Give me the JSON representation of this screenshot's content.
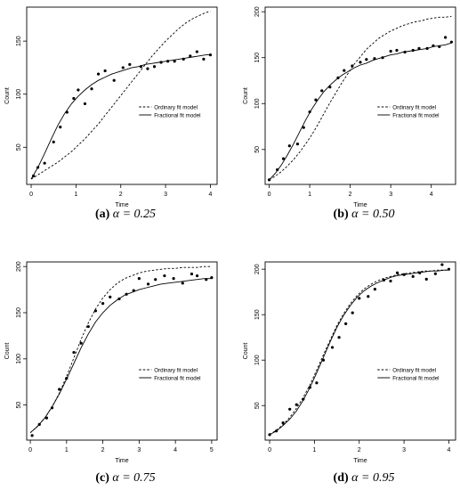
{
  "chart_data": [
    {
      "type": "line",
      "caption_label": "(a)",
      "caption_text": "α = 0.25",
      "xlabel": "Time",
      "ylabel": "Count",
      "xlim": [
        -0.1,
        4.15
      ],
      "ylim": [
        15,
        182
      ],
      "xticks": [
        0,
        1,
        2,
        3,
        4
      ],
      "yticks": [
        50,
        100,
        150
      ],
      "legend": {
        "position": "right",
        "entries": [
          "Ordinary fit model",
          "Fractional fit model"
        ]
      },
      "x": [
        0.0,
        0.15,
        0.3,
        0.45,
        0.6,
        0.75,
        0.9,
        1.05,
        1.2,
        1.35,
        1.5,
        1.65,
        1.8,
        1.95,
        2.1,
        2.25,
        2.4,
        2.55,
        2.7,
        2.85,
        3.0,
        3.15,
        3.3,
        3.45,
        3.6,
        3.75,
        3.9,
        4.0
      ],
      "series": [
        {
          "name": "Ordinary fit model",
          "style": "dashed",
          "values": [
            20,
            24,
            28,
            32,
            36,
            41,
            46,
            52,
            58,
            65,
            72,
            80,
            88,
            96,
            104,
            112,
            120,
            128,
            136,
            143,
            150,
            156,
            162,
            167,
            171,
            174,
            177,
            178
          ]
        },
        {
          "name": "Fractional fit model",
          "style": "solid",
          "values": [
            20,
            31,
            44,
            58,
            71,
            82,
            91,
            98,
            104,
            109,
            113,
            116,
            119,
            121,
            123,
            125,
            126,
            128,
            129,
            130,
            131,
            132,
            133,
            134,
            135,
            136,
            137,
            137
          ]
        }
      ],
      "points": {
        "x": [
          0.05,
          0.15,
          0.3,
          0.5,
          0.65,
          0.8,
          0.95,
          1.05,
          1.2,
          1.35,
          1.5,
          1.65,
          1.85,
          2.05,
          2.2,
          2.45,
          2.6,
          2.75,
          2.9,
          3.05,
          3.2,
          3.4,
          3.55,
          3.7,
          3.85,
          4.0
        ],
        "y": [
          23,
          31,
          35,
          55,
          69,
          83,
          96,
          104,
          91,
          105,
          119,
          122,
          113,
          125,
          128,
          126,
          124,
          126,
          130,
          131,
          131,
          133,
          136,
          140,
          133,
          137
        ]
      }
    },
    {
      "type": "line",
      "caption_label": "(b)",
      "caption_text": "α = 0.50",
      "xlabel": "Time",
      "ylabel": "Count",
      "xlim": [
        -0.1,
        4.6
      ],
      "ylim": [
        12,
        205
      ],
      "xticks": [
        0,
        1,
        2,
        3,
        4
      ],
      "yticks": [
        50,
        100,
        150,
        200
      ],
      "legend": {
        "position": "right",
        "entries": [
          "Ordinary fit model",
          "Fractional fit model"
        ]
      },
      "x": [
        0.0,
        0.15,
        0.3,
        0.45,
        0.6,
        0.75,
        0.9,
        1.05,
        1.2,
        1.35,
        1.5,
        1.65,
        1.8,
        1.95,
        2.1,
        2.25,
        2.4,
        2.55,
        2.7,
        2.85,
        3.0,
        3.15,
        3.3,
        3.45,
        3.6,
        3.75,
        3.9,
        4.05,
        4.2,
        4.35,
        4.5
      ],
      "series": [
        {
          "name": "Ordinary fit model",
          "style": "dashed",
          "values": [
            17,
            21,
            26,
            32,
            39,
            47,
            56,
            66,
            77,
            89,
            101,
            112,
            123,
            133,
            143,
            151,
            159,
            165,
            171,
            175,
            179,
            182,
            185,
            187,
            189,
            190,
            192,
            193,
            194,
            194,
            195
          ]
        },
        {
          "name": "Fractional fit model",
          "style": "solid",
          "values": [
            17,
            24,
            33,
            44,
            56,
            69,
            82,
            94,
            104,
            113,
            120,
            126,
            131,
            135,
            139,
            142,
            144,
            147,
            149,
            151,
            153,
            154,
            156,
            157,
            158,
            159,
            160,
            162,
            163,
            164,
            166
          ]
        }
      ],
      "points": {
        "x": [
          0.0,
          0.2,
          0.35,
          0.5,
          0.7,
          0.85,
          1.0,
          1.15,
          1.3,
          1.5,
          1.7,
          1.85,
          2.05,
          2.25,
          2.4,
          2.6,
          2.8,
          3.0,
          3.15,
          3.35,
          3.55,
          3.7,
          3.9,
          4.05,
          4.2,
          4.35,
          4.5
        ],
        "y": [
          17,
          28,
          40,
          54,
          56,
          74,
          91,
          104,
          114,
          118,
          128,
          136,
          141,
          145,
          148,
          149,
          150,
          157,
          158,
          156,
          158,
          160,
          160,
          163,
          162,
          172,
          167
        ]
      }
    },
    {
      "type": "line",
      "caption_label": "(c)",
      "caption_text": "α = 0.75",
      "xlabel": "Time",
      "ylabel": "Count",
      "xlim": [
        -0.1,
        5.15
      ],
      "ylim": [
        12,
        205
      ],
      "xticks": [
        0,
        1,
        2,
        3,
        4,
        5
      ],
      "yticks": [
        50,
        100,
        150,
        200
      ],
      "legend": {
        "position": "right",
        "entries": [
          "Ordinary fit model",
          "Fractional fit model"
        ]
      },
      "x": [
        0.0,
        0.2,
        0.4,
        0.6,
        0.8,
        1.0,
        1.2,
        1.4,
        1.6,
        1.8,
        2.0,
        2.2,
        2.4,
        2.6,
        2.8,
        3.0,
        3.2,
        3.4,
        3.6,
        3.8,
        4.0,
        4.2,
        4.4,
        4.6,
        4.8,
        5.0
      ],
      "series": [
        {
          "name": "Ordinary fit model",
          "style": "dashed",
          "values": [
            20,
            27,
            36,
            48,
            63,
            81,
            101,
            121,
            139,
            154,
            166,
            175,
            182,
            187,
            190,
            193,
            195,
            196,
            197,
            198,
            198,
            199,
            199,
            199,
            200,
            200
          ]
        },
        {
          "name": "Fractional fit model",
          "style": "solid",
          "values": [
            20,
            27,
            36,
            48,
            62,
            78,
            95,
            112,
            127,
            140,
            150,
            158,
            164,
            169,
            172,
            175,
            177,
            179,
            181,
            182,
            183,
            184,
            185,
            186,
            187,
            187
          ]
        }
      ],
      "points": {
        "x": [
          0.05,
          0.25,
          0.45,
          0.6,
          0.8,
          1.0,
          1.2,
          1.4,
          1.6,
          1.8,
          2.0,
          2.2,
          2.45,
          2.65,
          2.85,
          3.0,
          3.25,
          3.45,
          3.7,
          3.95,
          4.2,
          4.45,
          4.6,
          4.85,
          5.0
        ],
        "y": [
          17,
          29,
          36,
          47,
          67,
          79,
          107,
          117,
          135,
          152,
          160,
          167,
          165,
          170,
          174,
          187,
          181,
          186,
          190,
          187,
          182,
          192,
          190,
          186,
          188
        ]
      }
    },
    {
      "type": "line",
      "caption_label": "(d)",
      "caption_text": "α = 0.95",
      "xlabel": "Time",
      "ylabel": "Count",
      "xlim": [
        -0.1,
        4.15
      ],
      "ylim": [
        12,
        208
      ],
      "xticks": [
        0,
        1,
        2,
        3,
        4
      ],
      "yticks": [
        50,
        100,
        150,
        200
      ],
      "legend": {
        "position": "right",
        "entries": [
          "Ordinary fit model",
          "Fractional fit model"
        ]
      },
      "x": [
        0.0,
        0.15,
        0.3,
        0.45,
        0.6,
        0.75,
        0.9,
        1.05,
        1.2,
        1.35,
        1.5,
        1.65,
        1.8,
        1.95,
        2.1,
        2.25,
        2.4,
        2.55,
        2.7,
        2.85,
        3.0,
        3.15,
        3.3,
        3.45,
        3.6,
        3.75,
        3.9,
        4.0
      ],
      "series": [
        {
          "name": "Ordinary fit model",
          "style": "dashed",
          "values": [
            18,
            23,
            29,
            37,
            47,
            59,
            73,
            89,
            106,
            122,
            138,
            151,
            162,
            171,
            178,
            183,
            187,
            190,
            192,
            194,
            195,
            196,
            197,
            198,
            198,
            199,
            199,
            199
          ]
        },
        {
          "name": "Fractional fit model",
          "style": "solid",
          "values": [
            18,
            22,
            28,
            35,
            44,
            56,
            70,
            86,
            103,
            120,
            136,
            149,
            160,
            169,
            176,
            181,
            185,
            188,
            191,
            193,
            194,
            195,
            196,
            197,
            198,
            198,
            199,
            199
          ]
        }
      ],
      "points": {
        "x": [
          0.0,
          0.15,
          0.3,
          0.45,
          0.6,
          0.75,
          0.9,
          1.05,
          1.2,
          1.4,
          1.55,
          1.7,
          1.85,
          2.0,
          2.2,
          2.35,
          2.55,
          2.7,
          2.85,
          3.0,
          3.2,
          3.35,
          3.5,
          3.7,
          3.85,
          4.0
        ],
        "y": [
          18,
          22,
          31,
          46,
          51,
          57,
          70,
          75,
          100,
          114,
          125,
          140,
          152,
          168,
          170,
          178,
          188,
          187,
          196,
          194,
          192,
          196,
          189,
          195,
          205,
          200
        ]
      }
    }
  ]
}
